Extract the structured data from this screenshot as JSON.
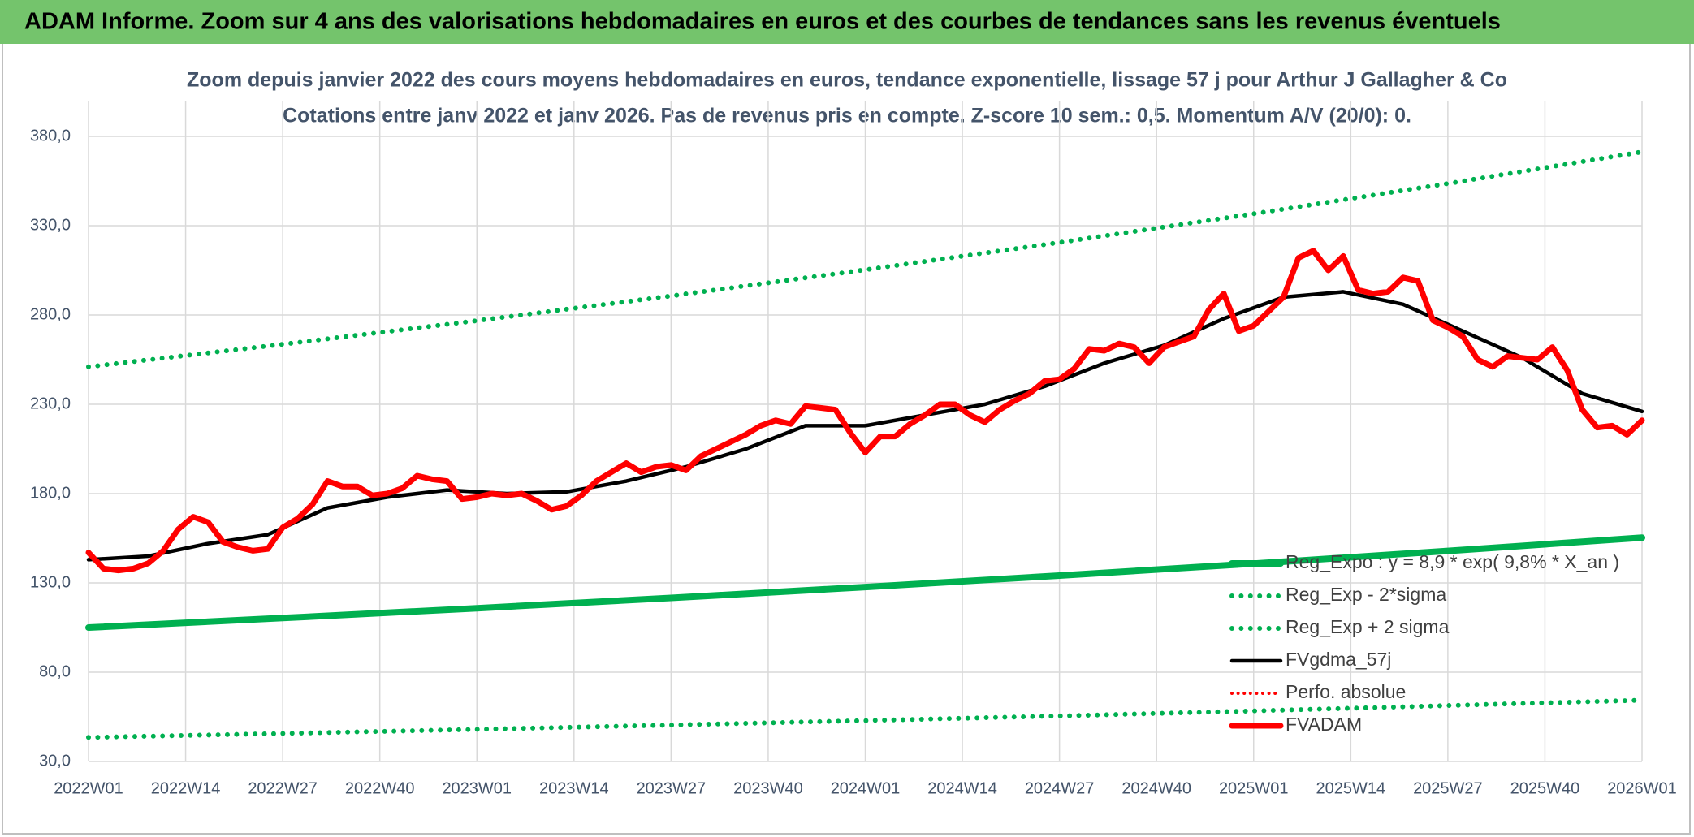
{
  "header": {
    "title": "ADAM Informe. Zoom sur 4 ans des valorisations hebdomadaires en euros et des courbes de tendances sans les revenus éventuels"
  },
  "chart_data": {
    "type": "line",
    "title": "Zoom depuis janvier 2022 des cours moyens hebdomadaires en euros, tendance exponentielle, lissage 57 j pour Arthur J Gallagher & Co",
    "subtitle": "Cotations entre janv 2022 et janv 2026. Pas de revenus pris en compte. Z-score 10 sem.: 0,5. Momentum A/V (20/0): 0.",
    "xlim": [
      0,
      208
    ],
    "xticks": [
      {
        "value": 0,
        "label": "2022W01"
      },
      {
        "value": 13,
        "label": "2022W14"
      },
      {
        "value": 26,
        "label": "2022W27"
      },
      {
        "value": 39,
        "label": "2022W40"
      },
      {
        "value": 52,
        "label": "2023W01"
      },
      {
        "value": 65,
        "label": "2023W14"
      },
      {
        "value": 78,
        "label": "2023W27"
      },
      {
        "value": 91,
        "label": "2023W40"
      },
      {
        "value": 104,
        "label": "2024W01"
      },
      {
        "value": 117,
        "label": "2024W14"
      },
      {
        "value": 130,
        "label": "2024W27"
      },
      {
        "value": 143,
        "label": "2024W40"
      },
      {
        "value": 156,
        "label": "2025W01"
      },
      {
        "value": 169,
        "label": "2025W14"
      },
      {
        "value": 182,
        "label": "2025W27"
      },
      {
        "value": 195,
        "label": "2025W40"
      },
      {
        "value": 208,
        "label": "2026W01"
      }
    ],
    "ylim": [
      30,
      400
    ],
    "yticks": [
      {
        "value": 30,
        "label": "30,0"
      },
      {
        "value": 80,
        "label": "80,0"
      },
      {
        "value": 130,
        "label": "130,0"
      },
      {
        "value": 180,
        "label": "180,0"
      },
      {
        "value": 230,
        "label": "230,0"
      },
      {
        "value": 280,
        "label": "280,0"
      },
      {
        "value": 330,
        "label": "330,0"
      },
      {
        "value": 380,
        "label": "380,0"
      }
    ],
    "grid": true,
    "legend": "lower right",
    "series": [
      {
        "name": "Reg_Expo : y = 8,9 * exp( 9,8% *  X_an )",
        "color": "#00b050",
        "style": "solid",
        "x": [
          0,
          26,
          52,
          78,
          104,
          130,
          156,
          182,
          208
        ],
        "values": [
          105,
          110.3,
          115.8,
          121.6,
          127.7,
          134.1,
          140.8,
          147.9,
          155.3
        ]
      },
      {
        "name": "Reg_Exp - 2*sigma",
        "color": "#00b050",
        "style": "dotted",
        "x": [
          0,
          26,
          52,
          78,
          104,
          130,
          156,
          182,
          208
        ],
        "values": [
          43.5,
          45.7,
          48.0,
          50.4,
          52.9,
          55.5,
          58.3,
          61.3,
          64.3
        ]
      },
      {
        "name": "Reg_Exp + 2 sigma",
        "color": "#00b050",
        "style": "dotted",
        "x": [
          0,
          26,
          52,
          78,
          104,
          130,
          156,
          182,
          208
        ],
        "values": [
          251,
          263.6,
          276.8,
          290.7,
          305.3,
          320.6,
          336.7,
          353.6,
          371.3
        ]
      },
      {
        "name": "FVgdma_57j",
        "color": "#000000",
        "style": "solid",
        "x": [
          0,
          8,
          16,
          24,
          32,
          40,
          48,
          56,
          64,
          72,
          80,
          88,
          96,
          104,
          112,
          120,
          128,
          136,
          144,
          152,
          160,
          168,
          176,
          184,
          192,
          200,
          208
        ],
        "values": [
          143,
          145,
          152,
          157,
          172,
          178,
          182,
          180,
          181,
          187,
          195,
          205,
          218,
          218,
          224,
          230,
          240,
          253,
          263,
          278,
          290,
          293,
          286,
          271,
          256,
          236,
          226
        ]
      },
      {
        "name": "Perfo. absolue",
        "color": "#ff0000",
        "style": "dotted"
      },
      {
        "name": "FVADAM",
        "color": "#ff0000",
        "style": "solid",
        "x": [
          0,
          2,
          4,
          6,
          8,
          10,
          12,
          14,
          16,
          18,
          20,
          22,
          24,
          26,
          28,
          30,
          32,
          34,
          36,
          38,
          40,
          42,
          44,
          46,
          48,
          50,
          52,
          54,
          56,
          58,
          60,
          62,
          64,
          66,
          68,
          70,
          72,
          74,
          76,
          78,
          80,
          82,
          84,
          86,
          88,
          90,
          92,
          94,
          96,
          98,
          100,
          102,
          104,
          106,
          108,
          110,
          112,
          114,
          116,
          118,
          120,
          122,
          124,
          126,
          128,
          130,
          132,
          134,
          136,
          138,
          140,
          142,
          144,
          146,
          148,
          150,
          152,
          154,
          156,
          158,
          160,
          162,
          164,
          166,
          168,
          170,
          172,
          174,
          176,
          178,
          180,
          182,
          184,
          186,
          188,
          190,
          192,
          194,
          196,
          198,
          200,
          202,
          204,
          206,
          208
        ],
        "values": [
          147,
          138,
          137,
          138,
          141,
          148,
          160,
          167,
          164,
          153,
          150,
          148,
          149,
          161,
          166,
          174,
          187,
          184,
          184,
          179,
          180,
          183,
          190,
          188,
          187,
          177,
          178,
          180,
          179,
          180,
          176,
          171,
          173,
          179,
          187,
          192,
          197,
          192,
          195,
          196,
          193,
          201,
          205,
          209,
          213,
          218,
          221,
          219,
          229,
          228,
          227,
          214,
          203,
          212,
          212,
          219,
          224,
          230,
          230,
          224,
          220,
          227,
          232,
          236,
          243,
          244,
          250,
          261,
          260,
          264,
          262,
          253,
          262,
          265,
          268,
          283,
          292,
          271,
          274,
          282,
          290,
          312,
          316,
          305,
          313,
          294,
          292,
          293,
          301,
          299,
          277,
          273,
          268,
          255,
          251,
          257,
          256,
          255,
          262,
          249,
          227,
          217,
          218,
          213,
          221
        ]
      }
    ]
  }
}
